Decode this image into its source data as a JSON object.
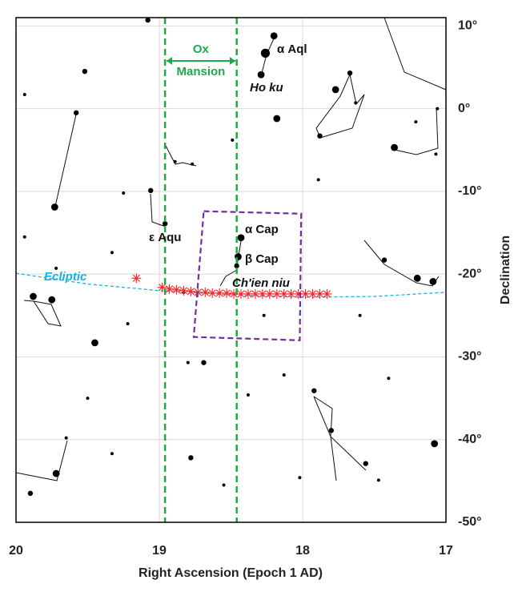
{
  "chart_data": {
    "type": "scatter",
    "xlabel": "Right Ascension (Epoch 1 AD)",
    "ylabel": "Declination",
    "xlim": [
      20,
      17
    ],
    "ylim": [
      -50,
      11
    ],
    "xticks": [
      20,
      19,
      18,
      17
    ],
    "yticks": [
      {
        "value": 10,
        "label": "10°"
      },
      {
        "value": 0,
        "label": "0°"
      },
      {
        "value": -10,
        "label": "-10°"
      },
      {
        "value": -20,
        "label": "-20°"
      },
      {
        "value": -30,
        "label": "-30°"
      },
      {
        "value": -40,
        "label": "-40°"
      },
      {
        "value": -50,
        "label": "-50°"
      }
    ],
    "grid": true,
    "stars": {
      "color": "#000000",
      "x": [
        18.2,
        18.26,
        18.29,
        18.18,
        19.73,
        19.58,
        18.96,
        18.43,
        18.45,
        18.46,
        19.88,
        19.75,
        19.45,
        19.72,
        17.08,
        17.2,
        17.09,
        17.36,
        17.77,
        17.67,
        17.43,
        17.92,
        17.8,
        17.56,
        19.08,
        19.52,
        19.94,
        18.77,
        18.89,
        19.06,
        19.25,
        18.49,
        17.88,
        17.06,
        17.07,
        17.21,
        18.69,
        18.8,
        18.78,
        19.33,
        18.02,
        17.47,
        18.13,
        19.94,
        19.33,
        19.65,
        19.9,
        18.38,
        17.6,
        17.4,
        18.83,
        19.22,
        17.63,
        17.89,
        18.55,
        19.5,
        19.72,
        18.27
      ],
      "y": [
        8.8,
        6.7,
        4.1,
        -1.2,
        -11.9,
        -0.5,
        -13.9,
        -15.6,
        -17.9,
        -19.0,
        -22.7,
        -23.1,
        -28.3,
        -44.1,
        -40.5,
        -20.5,
        -20.9,
        -4.7,
        2.3,
        4.3,
        -18.3,
        -34.1,
        -38.9,
        -42.9,
        10.7,
        4.5,
        1.7,
        -6.7,
        -6.4,
        -9.9,
        -10.2,
        -3.8,
        -3.3,
        0,
        -5.5,
        -1.6,
        -30.7,
        -30.7,
        -42.2,
        -41.7,
        -44.6,
        -44.9,
        -32.2,
        -15.5,
        -17.4,
        -39.8,
        -46.5,
        -34.6,
        -25.0,
        -32.6,
        -22.2,
        -26.0,
        0.7,
        -8.6,
        -45.5,
        -35.0,
        -19.3,
        -25.0
      ],
      "sizes": [
        3,
        4,
        3,
        3,
        3,
        2,
        2,
        3,
        3,
        2,
        3,
        3,
        3,
        3,
        3,
        3,
        3,
        3,
        3,
        2,
        2,
        2,
        2,
        2,
        2,
        2,
        1,
        1,
        1,
        2,
        1,
        1,
        2,
        1,
        1,
        1,
        2,
        1,
        2,
        1,
        1,
        1,
        1,
        1,
        1,
        1,
        2,
        1,
        1,
        1,
        1,
        1,
        1,
        1,
        1,
        1,
        1,
        1
      ]
    },
    "ecliptic": {
      "label": "Ecliptic",
      "color": "#1ab0e6",
      "x": [
        20,
        19.5,
        19,
        18.5,
        18,
        17.5,
        17
      ],
      "y": [
        -19.9,
        -21.2,
        -22.0,
        -22.5,
        -22.8,
        -22.7,
        -22.2
      ]
    },
    "asterisks": {
      "color": "#ff2020",
      "x": [
        19.16,
        18.98,
        18.93,
        18.88,
        18.83,
        18.78,
        18.73,
        18.68,
        18.63,
        18.58,
        18.53,
        18.48,
        18.43,
        18.38,
        18.33,
        18.28,
        18.23,
        18.18,
        18.13,
        18.08,
        18.03,
        17.98,
        17.93,
        17.88,
        17.83
      ],
      "y": [
        -20.5,
        -21.6,
        -21.8,
        -21.9,
        -22.0,
        -22.1,
        -22.2,
        -22.2,
        -22.3,
        -22.3,
        -22.3,
        -22.4,
        -22.4,
        -22.4,
        -22.4,
        -22.4,
        -22.4,
        -22.4,
        -22.4,
        -22.4,
        -22.4,
        -22.4,
        -22.4,
        -22.4,
        -22.4
      ]
    },
    "mansion": {
      "label": [
        "Ox",
        "Mansion"
      ],
      "color": "#1faa4a",
      "x": [
        18.96,
        18.46
      ]
    },
    "region": {
      "color": "#7030a0",
      "x": [
        18.69,
        18.01,
        18.02,
        18.76
      ],
      "y": [
        -12.4,
        -12.7,
        -28.0,
        -27.6
      ]
    },
    "annotations": [
      "α Aql",
      "Ho ku",
      "ε Aqu",
      "α Cap",
      "β Cap",
      "Ch'ien niu"
    ]
  }
}
